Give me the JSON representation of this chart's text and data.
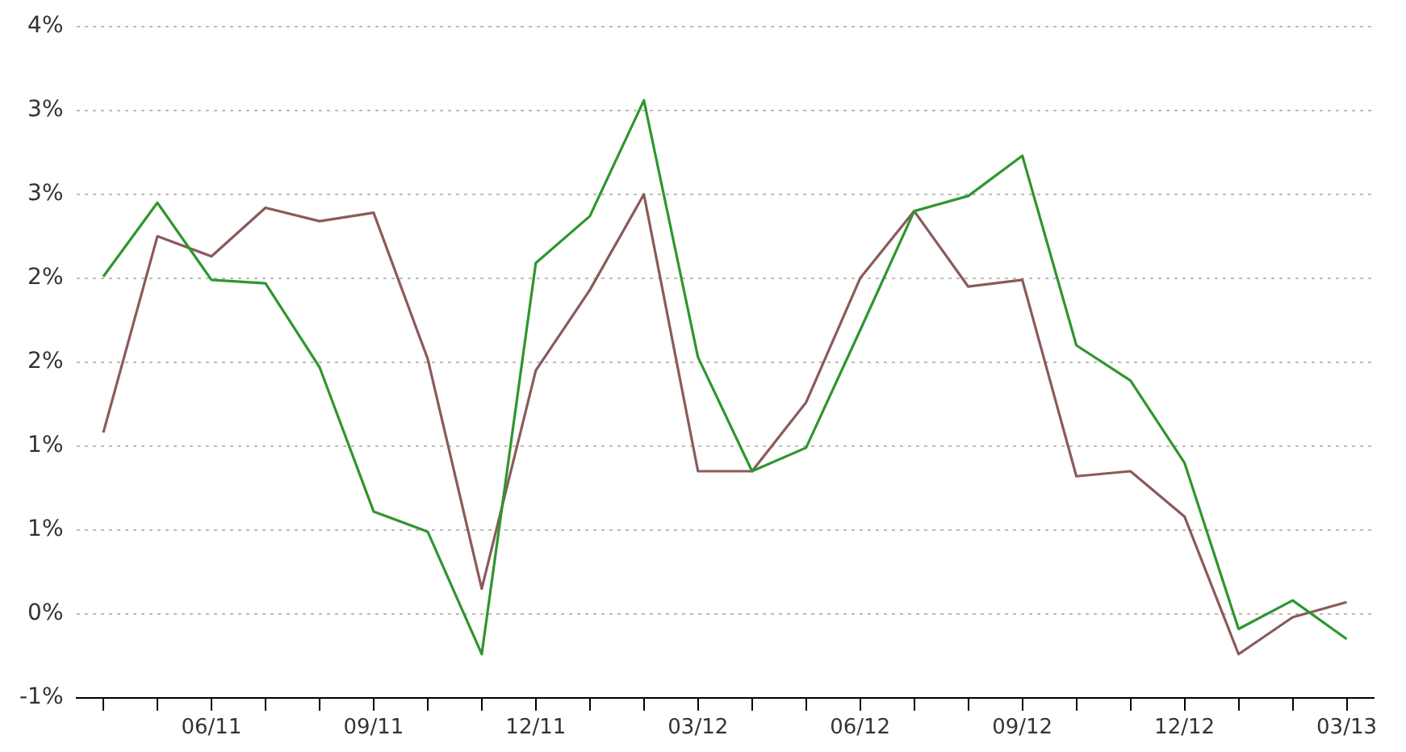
{
  "chart_data": {
    "type": "line",
    "categories": [
      null,
      null,
      "06/11",
      null,
      null,
      "09/11",
      null,
      null,
      "12/11",
      null,
      null,
      "03/12",
      null,
      null,
      "06/12",
      null,
      null,
      "09/12",
      null,
      null,
      "12/12",
      null,
      null,
      "03/13"
    ],
    "series": [
      {
        "color": "#2e962e",
        "values": [
          2.01,
          2.45,
          1.99,
          1.97,
          1.47,
          0.61,
          0.49,
          -0.24,
          2.09,
          2.37,
          3.06,
          1.53,
          0.85,
          0.99,
          1.69,
          2.4,
          2.49,
          2.73,
          1.6,
          1.39,
          0.9,
          -0.09,
          0.08,
          -0.15
        ]
      },
      {
        "color": "#8b5a5a",
        "values": [
          1.08,
          2.25,
          2.13,
          2.42,
          2.34,
          2.39,
          1.52,
          0.15,
          1.45,
          1.93,
          2.5,
          0.85,
          0.85,
          1.26,
          2.0,
          2.4,
          1.95,
          1.99,
          0.82,
          0.85,
          0.58,
          -0.24,
          -0.02,
          0.07
        ]
      }
    ],
    "ylim": [
      -0.5,
      3.5
    ],
    "yticks": [
      {
        "value": -0.5,
        "label": "-1%"
      },
      {
        "value": 0,
        "label": "0%"
      },
      {
        "value": 0.5,
        "label": "1%"
      },
      {
        "value": 1,
        "label": "1%"
      },
      {
        "value": 1.5,
        "label": "2%"
      },
      {
        "value": 2,
        "label": "2%"
      },
      {
        "value": 2.5,
        "label": "3%"
      },
      {
        "value": 3,
        "label": "3%"
      },
      {
        "value": 3.5,
        "label": "4%"
      }
    ],
    "grid": "y",
    "marker": "none",
    "line_style": "solid"
  }
}
